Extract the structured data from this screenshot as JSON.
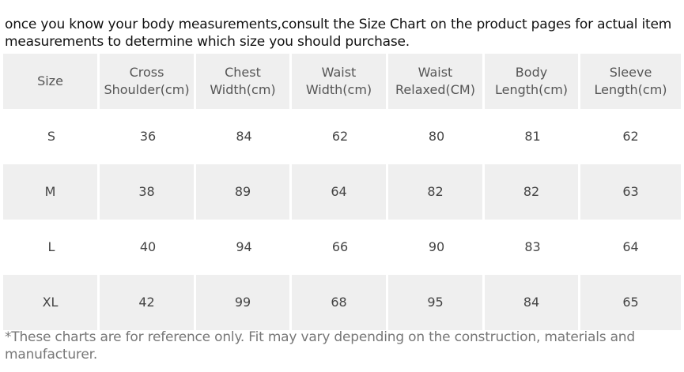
{
  "intro_text": "once you know your body measurements,consult the Size Chart on the product pages for actual item measurements to determine which size you should purchase.",
  "size_table": {
    "headers": [
      "Size",
      "Cross\nShoulder(cm)",
      "Chest\nWidth(cm)",
      "Waist\nWidth(cm)",
      "Waist\nRelaxed(CM)",
      "Body\nLength(cm)",
      "Sleeve\nLength(cm)"
    ],
    "rows": [
      [
        "S",
        "36",
        "84",
        "62",
        "80",
        "81",
        "62"
      ],
      [
        "M",
        "38",
        "89",
        "64",
        "82",
        "82",
        "63"
      ],
      [
        "L",
        "40",
        "94",
        "66",
        "90",
        "83",
        "64"
      ],
      [
        "XL",
        "42",
        "99",
        "68",
        "95",
        "84",
        "65"
      ]
    ]
  },
  "note_text": "*These charts are for reference only. Fit may vary depending on the construction, materials and manufacturer."
}
